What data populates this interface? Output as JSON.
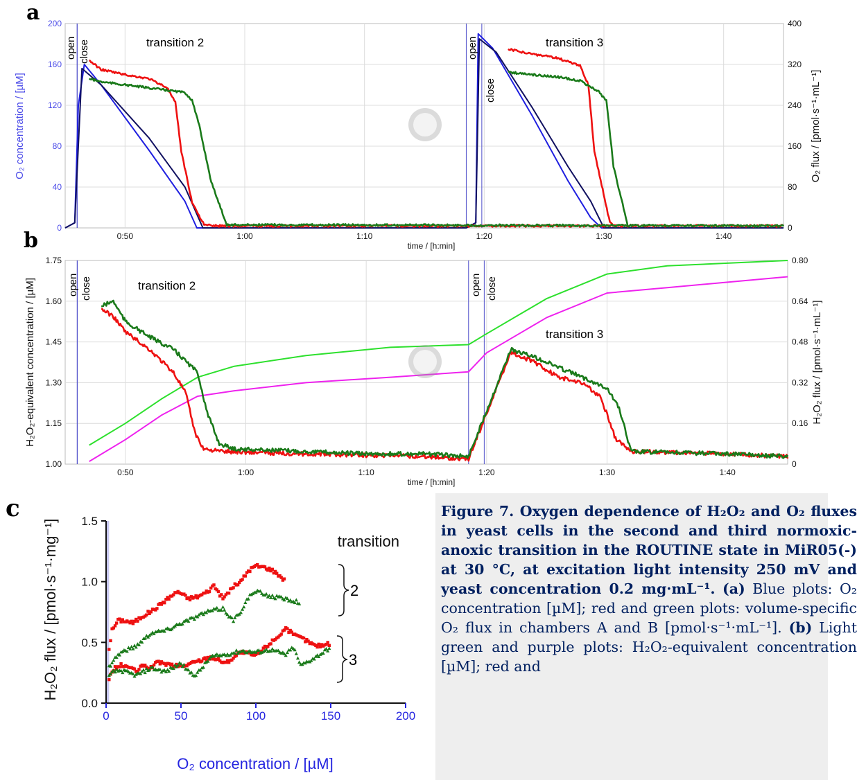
{
  "panels": {
    "a": {
      "letter": "a",
      "left_axis": {
        "label": "O₂ concentration / [µM]",
        "ticks": [
          "0",
          "40",
          "80",
          "120",
          "160",
          "200"
        ],
        "color": "#4a4ae8"
      },
      "right_axis": {
        "label": "O₂ flux / [pmol·s⁻¹·mL⁻¹]",
        "ticks": [
          "0",
          "80",
          "160",
          "240",
          "320",
          "400"
        ]
      },
      "x_ticks": [
        "0:50",
        "1:00",
        "1:10",
        "1:20",
        "1:30",
        "1:40"
      ],
      "x_label": "time / [h:min]",
      "annotations": {
        "open1": "open",
        "close1": "close",
        "t2": "transition 2",
        "open2": "open",
        "close2": "close",
        "t3": "transition 3"
      }
    },
    "b": {
      "letter": "b",
      "left_axis": {
        "label": "H₂O₂-equivalent concentration / [µM]",
        "ticks": [
          "1.00",
          "1.15",
          "1.30",
          "1.45",
          "1.60",
          "1.75"
        ]
      },
      "right_axis": {
        "label": "H₂O₂ flux / [pmol·s⁻¹·mL⁻¹]",
        "ticks": [
          "0",
          "0.16",
          "0.32",
          "0.48",
          "0.64",
          "0.80"
        ]
      },
      "x_ticks": [
        "0:50",
        "1:00",
        "1:10",
        "1:20",
        "1:30",
        "1:40"
      ],
      "x_label": "time / [h:min]",
      "annotations": {
        "open1": "open",
        "close1": "close",
        "t2": "transition 2",
        "open2": "open",
        "close2": "close",
        "t3": "transition 3"
      }
    },
    "c": {
      "letter": "c",
      "y_label": "H₂O₂ flux / [pmol·s⁻¹·mg⁻¹]",
      "x_label": "O₂ concentration / [µM]",
      "y_ticks": [
        "0.0",
        "0.5",
        "1.0",
        "1.5"
      ],
      "x_ticks": [
        "0",
        "50",
        "100",
        "150",
        "200"
      ],
      "legend_title": "transition",
      "brace_labels": [
        "2",
        "3"
      ]
    }
  },
  "caption": {
    "title": "Figure 7. Oxygen dependence of H₂O₂ and O₂ fluxes in yeast cells in the second and third normoxic-anoxic transition in the ROUTINE state in MiR05(-) at 30 °C, at excitation light intensity 250 mV and yeast concentration 0.2 mg·mL⁻¹.",
    "a_label": "(a)",
    "a_text": "Blue plots: O₂ concentration [µM]; red and green plots: volume-specific O₂ flux in chambers A and B [pmol·s⁻¹·mL⁻¹].",
    "b_label": "(b)",
    "b_text": "Light green and purple plots: H₂O₂-equivalent concentration [µM]; red and"
  },
  "chart_data": [
    {
      "type": "line",
      "panel": "a",
      "x_unit": "time h:min",
      "xlim": [
        "0:45",
        "1:45"
      ],
      "ylim_left": [
        0,
        200
      ],
      "ylim_right": [
        0,
        400
      ],
      "events": [
        {
          "label": "open",
          "x": "0:46"
        },
        {
          "label": "close",
          "x": "0:46"
        },
        {
          "label": "open",
          "x": "1:18.5"
        },
        {
          "label": "close",
          "x": "1:19.8"
        }
      ],
      "series": [
        {
          "axis": "left",
          "color": "#1f1fe0",
          "x": [
            "0:45",
            "0:45.8",
            "0:46.1",
            "0:46.6",
            "0:48",
            "0:52",
            "0:55",
            "0:56",
            "1:18.5",
            "1:18.5",
            "1:19.3",
            "1:19.5",
            "1:20.7",
            "1:24",
            "1:27",
            "1:28.9",
            "1:29.8",
            "1:45"
          ],
          "values": [
            0,
            5,
            120,
            160,
            140,
            76,
            26,
            0,
            0,
            0,
            5,
            190,
            176,
            110,
            46,
            10,
            0,
            0
          ]
        },
        {
          "axis": "left",
          "color": "#101060",
          "x": [
            "0:45",
            "0:45.8",
            "0:46.4",
            "0:48",
            "0:52",
            "0:55",
            "0:56.5",
            "1:18.5",
            "1:19.3",
            "1:19.6",
            "1:21",
            "1:24",
            "1:27",
            "1:28.9",
            "1:30",
            "1:45"
          ],
          "values": [
            0,
            5,
            156,
            140,
            88,
            40,
            0,
            0,
            5,
            185,
            172,
            118,
            60,
            26,
            0,
            0
          ]
        },
        {
          "axis": "right",
          "color": "#ee1111",
          "x": [
            "0:47",
            "0:48",
            "0:50",
            "0:52",
            "0:53.5",
            "0:54.2",
            "0:54.7",
            "0:55.6",
            "0:56.6",
            "0:57.5",
            "1:45",
            "1:22",
            "1:24",
            "1:26",
            "1:28",
            "1:28.7",
            "1:29.2",
            "1:30.5",
            "1:31"
          ],
          "values": [
            328,
            310,
            300,
            292,
            275,
            245,
            150,
            50,
            6,
            4,
            4,
            350,
            340,
            333,
            318,
            280,
            150,
            10,
            4
          ]
        },
        {
          "axis": "right",
          "color": "#1a7a1a",
          "x": [
            "0:47",
            "0:48",
            "0:50",
            "0:52",
            "0:55",
            "0:55.6",
            "0:56.2",
            "0:57.2",
            "0:58.5",
            "1:45",
            "1:22",
            "1:24",
            "1:26",
            "1:28",
            "1:29.5",
            "1:30.2",
            "1:30.8",
            "1:32"
          ],
          "values": [
            292,
            286,
            280,
            274,
            265,
            250,
            200,
            90,
            6,
            4,
            305,
            300,
            296,
            288,
            268,
            250,
            120,
            4
          ]
        }
      ]
    },
    {
      "type": "line",
      "panel": "b",
      "x_unit": "time h:min",
      "xlim": [
        "0:45",
        "1:45"
      ],
      "ylim_left": [
        1.0,
        1.75
      ],
      "ylim_right": [
        0,
        0.8
      ],
      "events": [
        {
          "label": "open",
          "x": "0:46"
        },
        {
          "label": "close",
          "x": "0:46"
        },
        {
          "label": "open",
          "x": "1:18.5"
        },
        {
          "label": "close",
          "x": "1:19.8"
        }
      ],
      "series": [
        {
          "axis": "left",
          "color": "#2de02d",
          "x": [
            "0:47",
            "0:50",
            "0:53",
            "0:56",
            "0:59",
            "1:05",
            "1:12",
            "1:18.5",
            "1:20",
            "1:25",
            "1:30",
            "1:35",
            "1:40",
            "1:45"
          ],
          "values": [
            1.07,
            1.15,
            1.24,
            1.32,
            1.36,
            1.4,
            1.43,
            1.44,
            1.48,
            1.61,
            1.7,
            1.73,
            1.74,
            1.75
          ]
        },
        {
          "axis": "left",
          "color": "#ee22ee",
          "x": [
            "0:47",
            "0:50",
            "0:53",
            "0:56",
            "0:59",
            "1:05",
            "1:12",
            "1:18.5",
            "1:20",
            "1:25",
            "1:30",
            "1:35",
            "1:40",
            "1:45"
          ],
          "values": [
            1.01,
            1.09,
            1.18,
            1.25,
            1.27,
            1.3,
            1.32,
            1.34,
            1.41,
            1.54,
            1.63,
            1.65,
            1.67,
            1.69
          ]
        },
        {
          "axis": "right",
          "color": "#ee1111",
          "x": [
            "0:48",
            "0:49",
            "0:50",
            "0:52",
            "0:54",
            "0:55",
            "0:55.8",
            "0:56.5",
            "0:58",
            "1:05",
            "1:10",
            "1:15",
            "1:18.5",
            "1:22",
            "1:24",
            "1:26",
            "1:28",
            "1:29.5",
            "1:30.7",
            "1:32",
            "1:40",
            "1:45"
          ],
          "values": [
            0.61,
            0.58,
            0.52,
            0.45,
            0.36,
            0.28,
            0.12,
            0.06,
            0.05,
            0.04,
            0.035,
            0.03,
            0.02,
            0.44,
            0.4,
            0.34,
            0.32,
            0.26,
            0.1,
            0.05,
            0.04,
            0.03
          ]
        },
        {
          "axis": "right",
          "color": "#1a7a1a",
          "x": [
            "0:48",
            "0:49",
            "0:50",
            "0:52",
            "0:54",
            "0:56",
            "0:56.8",
            "0:57.8",
            "0:59",
            "1:05",
            "1:10",
            "1:15",
            "1:18.5",
            "1:22",
            "1:24",
            "1:26",
            "1:28",
            "1:30",
            "1:31",
            "1:32",
            "1:40",
            "1:45"
          ],
          "values": [
            0.62,
            0.64,
            0.56,
            0.5,
            0.45,
            0.36,
            0.2,
            0.08,
            0.06,
            0.05,
            0.04,
            0.04,
            0.03,
            0.45,
            0.42,
            0.38,
            0.34,
            0.3,
            0.22,
            0.05,
            0.04,
            0.03
          ]
        }
      ]
    },
    {
      "type": "scatter",
      "panel": "c",
      "xlabel": "O₂ concentration / [µM]",
      "ylabel": "H₂O₂ flux / [pmol·s⁻¹·mg⁻¹]",
      "xlim": [
        0,
        200
      ],
      "ylim": [
        0,
        1.5
      ],
      "series": [
        {
          "transition": "2",
          "chamber": "red",
          "color": "#ee1111",
          "x": [
            2,
            4,
            8,
            12,
            18,
            25,
            32,
            40,
            48,
            55,
            62,
            68,
            72,
            78,
            85,
            90,
            95,
            100,
            105,
            110,
            115,
            120
          ],
          "values": [
            0.45,
            0.6,
            0.68,
            0.68,
            0.66,
            0.72,
            0.77,
            0.85,
            0.92,
            0.86,
            0.88,
            0.92,
            0.97,
            0.86,
            0.96,
            1.0,
            1.09,
            1.13,
            1.12,
            1.1,
            1.06,
            1.0
          ]
        },
        {
          "transition": "2",
          "chamber": "green",
          "color": "#1a7a1a",
          "x": [
            2,
            5,
            10,
            20,
            30,
            40,
            50,
            60,
            65,
            70,
            78,
            85,
            90,
            95,
            100,
            110,
            120,
            130
          ],
          "values": [
            0.3,
            0.36,
            0.42,
            0.47,
            0.58,
            0.6,
            0.66,
            0.71,
            0.74,
            0.76,
            0.78,
            0.68,
            0.76,
            0.87,
            0.92,
            0.88,
            0.86,
            0.83
          ]
        },
        {
          "transition": "3",
          "chamber": "red",
          "color": "#ee1111",
          "x": [
            2,
            5,
            10,
            15,
            20,
            25,
            30,
            35,
            40,
            50,
            60,
            70,
            80,
            90,
            100,
            110,
            115,
            120,
            125,
            130,
            140,
            150
          ],
          "values": [
            0.2,
            0.28,
            0.31,
            0.3,
            0.26,
            0.31,
            0.29,
            0.34,
            0.32,
            0.3,
            0.34,
            0.38,
            0.33,
            0.42,
            0.39,
            0.5,
            0.55,
            0.62,
            0.56,
            0.54,
            0.47,
            0.49
          ]
        },
        {
          "transition": "3",
          "chamber": "green",
          "color": "#1a7a1a",
          "x": [
            2,
            5,
            10,
            15,
            20,
            30,
            40,
            50,
            55,
            60,
            70,
            80,
            90,
            100,
            110,
            120,
            125,
            130,
            140,
            150
          ],
          "values": [
            0.22,
            0.26,
            0.27,
            0.25,
            0.23,
            0.29,
            0.26,
            0.33,
            0.26,
            0.23,
            0.38,
            0.4,
            0.43,
            0.42,
            0.44,
            0.4,
            0.46,
            0.31,
            0.38,
            0.46
          ]
        }
      ]
    }
  ]
}
